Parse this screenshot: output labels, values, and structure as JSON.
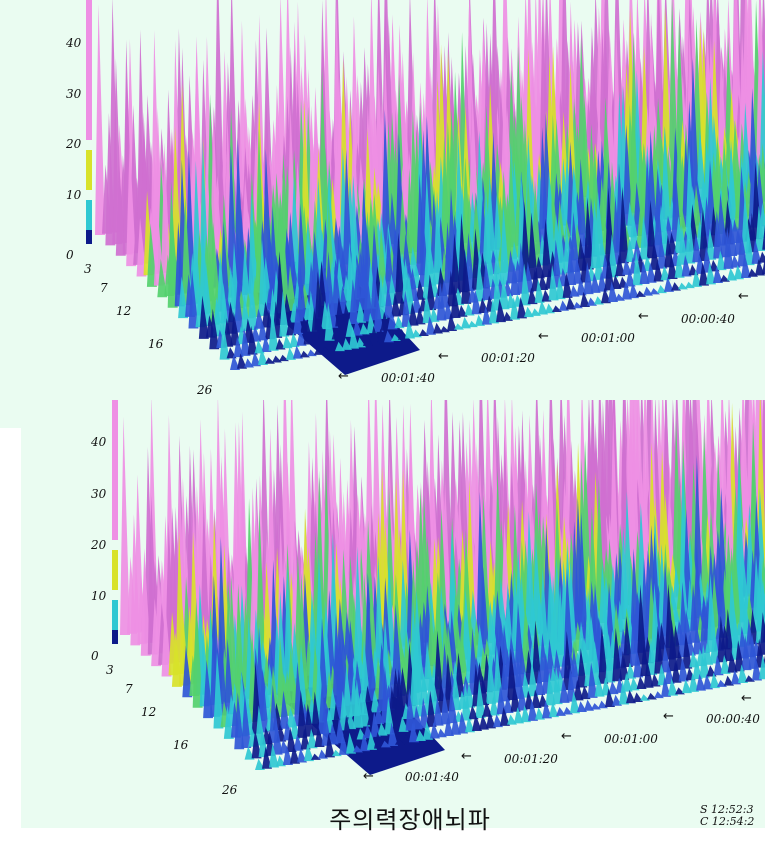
{
  "window": {
    "background": "#ffffff",
    "panel_color": "#eafcf1"
  },
  "title": "주의력장애뇌파",
  "status": {
    "start": "S 12:52:3",
    "current": "C 12:54:2"
  },
  "colors": {
    "magenta": "#cf6fd0",
    "pink": "#ee8fe4",
    "yellow": "#d8e22a",
    "green": "#54d06e",
    "cyan": "#2fc8d2",
    "blue": "#2f56d6",
    "navy": "#0d1a8a"
  },
  "plots": [
    {
      "id": "top",
      "z_ticks": [
        "40",
        "30",
        "20",
        "10",
        "0"
      ],
      "freq_ticks": [
        "3",
        "7",
        "12",
        "16",
        "26"
      ],
      "time_ticks": [
        "00:00:40",
        "00:01:00",
        "00:01:20",
        "00:01:40"
      ],
      "arrow": "←"
    },
    {
      "id": "bottom",
      "z_ticks": [
        "40",
        "30",
        "20",
        "10",
        "0"
      ],
      "freq_ticks": [
        "3",
        "7",
        "12",
        "16",
        "26"
      ],
      "time_ticks": [
        "00:00:40",
        "00:01:00",
        "00:01:20",
        "00:01:40"
      ],
      "arrow": "←"
    }
  ]
}
